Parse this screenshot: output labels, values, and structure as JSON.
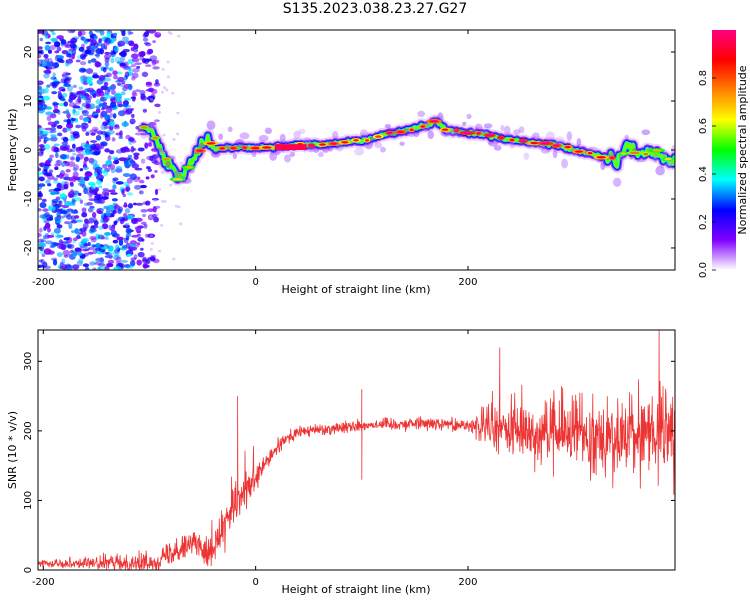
{
  "title": "S135.2023.038.23.27.G27",
  "chart_data": [
    {
      "type": "heatmap",
      "xlabel": "Height of straight line (km)",
      "ylabel": "Frequency (Hz)",
      "xlim": [
        -205,
        395
      ],
      "ylim": [
        -24.5,
        24.5
      ],
      "x_ticks": [
        -200,
        0,
        200
      ],
      "y_ticks": [
        -20,
        -10,
        0,
        10,
        20
      ],
      "colorbar": {
        "label": "Normalized spectral amplitude",
        "range": [
          0,
          1
        ],
        "ticks": [
          0.0,
          0.2,
          0.4,
          0.6,
          0.8
        ],
        "colors": [
          "#ffffff",
          "#8000ff",
          "#0000ff",
          "#00ffff",
          "#00ff00",
          "#ffff00",
          "#ff8000",
          "#ff0000",
          "#ff0080"
        ]
      },
      "ridge_x": [
        -105,
        -95,
        -90,
        -85,
        -80,
        -75,
        -70,
        -65,
        -60,
        -55,
        -50,
        -45,
        -40,
        -30,
        -20,
        0,
        20,
        40,
        60,
        80,
        100,
        120,
        140,
        160,
        170,
        180,
        200,
        220,
        240,
        260,
        280,
        300,
        320,
        340,
        350,
        360,
        370,
        380,
        395
      ],
      "ridge_y": [
        5,
        3,
        1,
        -2,
        -3,
        -4,
        -6,
        -3,
        -2,
        0,
        1,
        2,
        0,
        0.5,
        0.5,
        0.5,
        0.6,
        1,
        1,
        1.5,
        2,
        3,
        4,
        5,
        6,
        4,
        3.5,
        3,
        2,
        1.5,
        1,
        0,
        -1,
        -2,
        1,
        -1,
        0,
        -1.5,
        -2
      ],
      "noise_region": [
        -205,
        -100
      ],
      "ridge_peak": [
        -80,
        160
      ]
    },
    {
      "type": "line",
      "xlabel": "Height of straight line (km)",
      "ylabel": "SNR (10 * v/v)",
      "xlim": [
        -205,
        395
      ],
      "ylim": [
        0,
        345
      ],
      "x_ticks": [
        -200,
        0,
        200
      ],
      "y_ticks": [
        0,
        100,
        200,
        300
      ],
      "line_color": "#ee3333",
      "trend_x": [
        -205,
        -100,
        -90,
        -80,
        -70,
        -60,
        -50,
        -40,
        -30,
        -20,
        -10,
        0,
        10,
        20,
        30,
        40,
        60,
        80,
        100,
        120,
        140,
        160,
        180,
        200,
        220,
        240,
        260,
        280,
        300,
        320,
        340,
        360,
        380,
        395
      ],
      "trend_y": [
        10,
        10,
        15,
        25,
        35,
        40,
        30,
        35,
        60,
        90,
        110,
        130,
        155,
        175,
        190,
        198,
        202,
        205,
        208,
        210,
        210,
        212,
        210,
        208,
        205,
        200,
        200,
        195,
        200,
        195,
        190,
        195,
        200,
        195
      ],
      "noise_amplitude": [
        [
          -205,
          4
        ],
        [
          -80,
          15
        ],
        [
          -30,
          30
        ],
        [
          10,
          12
        ],
        [
          40,
          8
        ],
        [
          200,
          8
        ],
        [
          220,
          35
        ],
        [
          395,
          55
        ]
      ],
      "spikes": [
        [
          -17,
          250
        ],
        [
          100,
          260
        ],
        [
          100,
          130
        ],
        [
          230,
          320
        ],
        [
          380,
          345
        ]
      ]
    }
  ]
}
